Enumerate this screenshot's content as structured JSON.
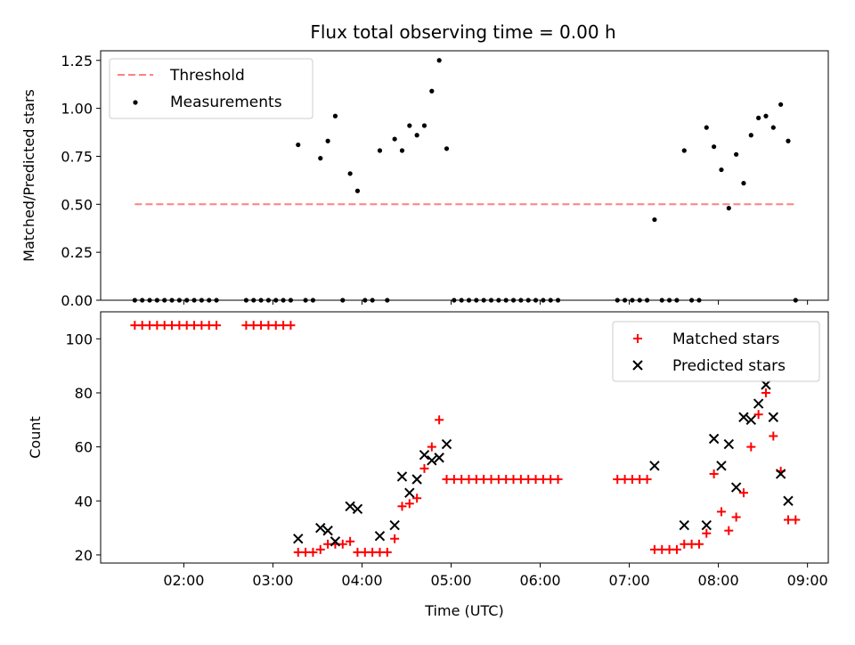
{
  "title": "Flux total observing time = 0.00 h",
  "chart_data": [
    {
      "type": "scatter",
      "ylabel": "Matched/Predicted stars",
      "xlim": [
        "01:04",
        "09:14"
      ],
      "ylim": [
        0,
        1.3
      ],
      "yticks": [
        "0.00",
        "0.25",
        "0.50",
        "0.75",
        "1.00",
        "1.25"
      ],
      "legend": {
        "placement": "upper-left",
        "entries": [
          "Threshold",
          "Measurements"
        ]
      },
      "threshold": {
        "name": "Threshold",
        "value": 0.5,
        "x_range": [
          "01:27",
          "08:51"
        ],
        "color": "#ff8080"
      },
      "series": [
        {
          "name": "Measurements",
          "color": "#000000",
          "points": [
            [
              "01:27",
              0
            ],
            [
              "01:32",
              0
            ],
            [
              "01:37",
              0
            ],
            [
              "01:42",
              0
            ],
            [
              "01:47",
              0
            ],
            [
              "01:52",
              0
            ],
            [
              "01:57",
              0
            ],
            [
              "02:02",
              0
            ],
            [
              "02:07",
              0
            ],
            [
              "02:12",
              0
            ],
            [
              "02:17",
              0
            ],
            [
              "02:22",
              0
            ],
            [
              "02:42",
              0
            ],
            [
              "02:47",
              0
            ],
            [
              "02:52",
              0
            ],
            [
              "02:57",
              0
            ],
            [
              "03:02",
              0
            ],
            [
              "03:07",
              0
            ],
            [
              "03:12",
              0
            ],
            [
              "03:17",
              0.81
            ],
            [
              "03:22",
              0
            ],
            [
              "03:27",
              0
            ],
            [
              "03:32",
              0.74
            ],
            [
              "03:37",
              0.83
            ],
            [
              "03:42",
              0.96
            ],
            [
              "03:47",
              0
            ],
            [
              "03:52",
              0.66
            ],
            [
              "03:57",
              0.57
            ],
            [
              "04:02",
              0
            ],
            [
              "04:07",
              0
            ],
            [
              "04:12",
              0.78
            ],
            [
              "04:17",
              0
            ],
            [
              "04:22",
              0.84
            ],
            [
              "04:27",
              0.78
            ],
            [
              "04:32",
              0.91
            ],
            [
              "04:37",
              0.86
            ],
            [
              "04:42",
              0.91
            ],
            [
              "04:47",
              1.09
            ],
            [
              "04:52",
              1.25
            ],
            [
              "04:57",
              0.79
            ],
            [
              "05:02",
              0
            ],
            [
              "05:07",
              0
            ],
            [
              "05:12",
              0
            ],
            [
              "05:17",
              0
            ],
            [
              "05:22",
              0
            ],
            [
              "05:27",
              0
            ],
            [
              "05:32",
              0
            ],
            [
              "05:37",
              0
            ],
            [
              "05:42",
              0
            ],
            [
              "05:47",
              0
            ],
            [
              "05:52",
              0
            ],
            [
              "05:57",
              0
            ],
            [
              "06:02",
              0
            ],
            [
              "06:07",
              0
            ],
            [
              "06:12",
              0
            ],
            [
              "06:52",
              0
            ],
            [
              "06:57",
              0
            ],
            [
              "07:02",
              0
            ],
            [
              "07:07",
              0
            ],
            [
              "07:12",
              0
            ],
            [
              "07:17",
              0.42
            ],
            [
              "07:22",
              0
            ],
            [
              "07:27",
              0
            ],
            [
              "07:32",
              0
            ],
            [
              "07:37",
              0.78
            ],
            [
              "07:42",
              0
            ],
            [
              "07:47",
              0
            ],
            [
              "07:52",
              0.9
            ],
            [
              "07:57",
              0.8
            ],
            [
              "08:02",
              0.68
            ],
            [
              "08:07",
              0.48
            ],
            [
              "08:12",
              0.76
            ],
            [
              "08:17",
              0.61
            ],
            [
              "08:22",
              0.86
            ],
            [
              "08:27",
              0.95
            ],
            [
              "08:32",
              0.96
            ],
            [
              "08:37",
              0.9
            ],
            [
              "08:42",
              1.02
            ],
            [
              "08:47",
              0.83
            ],
            [
              "08:52",
              0
            ]
          ]
        }
      ]
    },
    {
      "type": "scatter",
      "xlabel": "Time (UTC)",
      "ylabel": "Count",
      "xlim": [
        "01:04",
        "09:14"
      ],
      "ylim": [
        17,
        110
      ],
      "yticks": [
        "20",
        "40",
        "60",
        "80",
        "100"
      ],
      "xticks": [
        "02:00",
        "03:00",
        "04:00",
        "05:00",
        "06:00",
        "07:00",
        "08:00",
        "09:00"
      ],
      "legend": {
        "placement": "upper-right",
        "entries": [
          "Matched stars",
          "Predicted stars"
        ]
      },
      "series": [
        {
          "name": "Matched stars",
          "marker": "plus",
          "color": "#ff0000",
          "points": [
            [
              "01:27",
              105
            ],
            [
              "01:32",
              105
            ],
            [
              "01:37",
              105
            ],
            [
              "01:42",
              105
            ],
            [
              "01:47",
              105
            ],
            [
              "01:52",
              105
            ],
            [
              "01:57",
              105
            ],
            [
              "02:02",
              105
            ],
            [
              "02:07",
              105
            ],
            [
              "02:12",
              105
            ],
            [
              "02:17",
              105
            ],
            [
              "02:22",
              105
            ],
            [
              "02:42",
              105
            ],
            [
              "02:47",
              105
            ],
            [
              "02:52",
              105
            ],
            [
              "02:57",
              105
            ],
            [
              "03:02",
              105
            ],
            [
              "03:07",
              105
            ],
            [
              "03:12",
              105
            ],
            [
              "03:17",
              21
            ],
            [
              "03:22",
              21
            ],
            [
              "03:27",
              21
            ],
            [
              "03:32",
              22
            ],
            [
              "03:37",
              24
            ],
            [
              "03:42",
              24
            ],
            [
              "03:47",
              24
            ],
            [
              "03:52",
              25
            ],
            [
              "03:57",
              21
            ],
            [
              "04:02",
              21
            ],
            [
              "04:07",
              21
            ],
            [
              "04:12",
              21
            ],
            [
              "04:17",
              21
            ],
            [
              "04:22",
              26
            ],
            [
              "04:27",
              38
            ],
            [
              "04:32",
              39
            ],
            [
              "04:37",
              41
            ],
            [
              "04:42",
              52
            ],
            [
              "04:47",
              60
            ],
            [
              "04:52",
              70
            ],
            [
              "04:57",
              48
            ],
            [
              "05:02",
              48
            ],
            [
              "05:07",
              48
            ],
            [
              "05:12",
              48
            ],
            [
              "05:17",
              48
            ],
            [
              "05:22",
              48
            ],
            [
              "05:27",
              48
            ],
            [
              "05:32",
              48
            ],
            [
              "05:37",
              48
            ],
            [
              "05:42",
              48
            ],
            [
              "05:47",
              48
            ],
            [
              "05:52",
              48
            ],
            [
              "05:57",
              48
            ],
            [
              "06:02",
              48
            ],
            [
              "06:07",
              48
            ],
            [
              "06:12",
              48
            ],
            [
              "06:52",
              48
            ],
            [
              "06:57",
              48
            ],
            [
              "07:02",
              48
            ],
            [
              "07:07",
              48
            ],
            [
              "07:12",
              48
            ],
            [
              "07:17",
              22
            ],
            [
              "07:22",
              22
            ],
            [
              "07:27",
              22
            ],
            [
              "07:32",
              22
            ],
            [
              "07:37",
              24
            ],
            [
              "07:42",
              24
            ],
            [
              "07:47",
              24
            ],
            [
              "07:52",
              28
            ],
            [
              "07:57",
              50
            ],
            [
              "08:02",
              36
            ],
            [
              "08:07",
              29
            ],
            [
              "08:12",
              34
            ],
            [
              "08:17",
              43
            ],
            [
              "08:22",
              60
            ],
            [
              "08:27",
              72
            ],
            [
              "08:32",
              80
            ],
            [
              "08:37",
              64
            ],
            [
              "08:42",
              51
            ],
            [
              "08:47",
              33
            ],
            [
              "08:52",
              33
            ]
          ]
        },
        {
          "name": "Predicted stars",
          "marker": "x",
          "color": "#000000",
          "points": [
            [
              "03:17",
              26
            ],
            [
              "03:32",
              30
            ],
            [
              "03:37",
              29
            ],
            [
              "03:42",
              25
            ],
            [
              "03:52",
              38
            ],
            [
              "03:57",
              37
            ],
            [
              "04:12",
              27
            ],
            [
              "04:22",
              31
            ],
            [
              "04:27",
              49
            ],
            [
              "04:32",
              43
            ],
            [
              "04:37",
              48
            ],
            [
              "04:42",
              57
            ],
            [
              "04:47",
              55
            ],
            [
              "04:52",
              56
            ],
            [
              "04:57",
              61
            ],
            [
              "07:17",
              53
            ],
            [
              "07:37",
              31
            ],
            [
              "07:52",
              31
            ],
            [
              "07:57",
              63
            ],
            [
              "08:02",
              53
            ],
            [
              "08:07",
              61
            ],
            [
              "08:12",
              45
            ],
            [
              "08:17",
              71
            ],
            [
              "08:22",
              70
            ],
            [
              "08:27",
              76
            ],
            [
              "08:32",
              83
            ],
            [
              "08:37",
              71
            ],
            [
              "08:42",
              50
            ],
            [
              "08:47",
              40
            ]
          ]
        }
      ]
    }
  ]
}
